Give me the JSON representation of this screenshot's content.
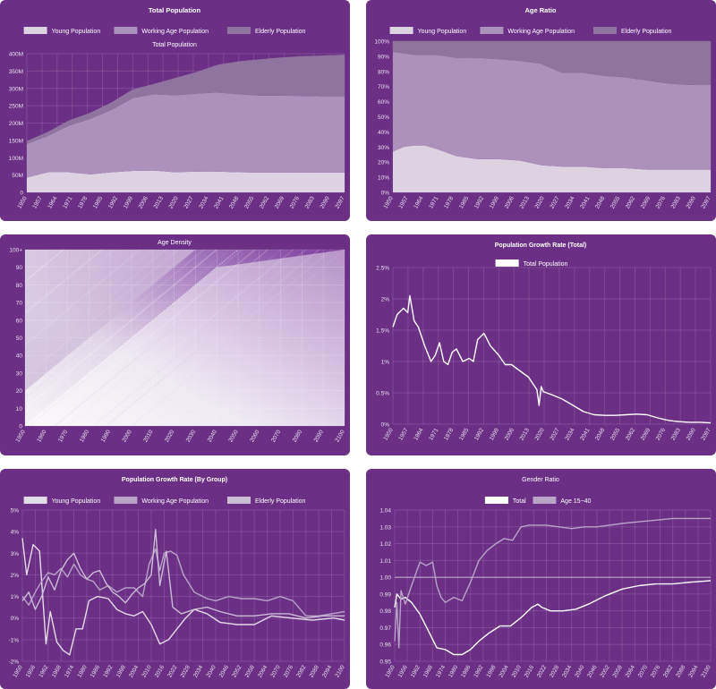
{
  "chart_data": [
    {
      "id": "total-population",
      "type": "area",
      "stacked": true,
      "title": "Total Population",
      "subtitle": "Total Population",
      "legend": [
        "Young Population",
        "Working Age Population",
        "Elderly Population"
      ],
      "x_ticks": [
        "1950",
        "1957",
        "1964",
        "1971",
        "1978",
        "1985",
        "1992",
        "1999",
        "2006",
        "2013",
        "2020",
        "2027",
        "2034",
        "2041",
        "2048",
        "2055",
        "2062",
        "2069",
        "2076",
        "2083",
        "2090",
        "2097"
      ],
      "y_ticks": [
        "0",
        "50M",
        "100M",
        "150M",
        "200M",
        "250M",
        "300M",
        "350M",
        "400M"
      ],
      "ylim": [
        0,
        400
      ],
      "x": [
        1950,
        1960,
        1970,
        1980,
        1990,
        2000,
        2010,
        2020,
        2030,
        2040,
        2050,
        2060,
        2070,
        2080,
        2090,
        2100
      ],
      "series": [
        {
          "name": "Young Population",
          "values": [
            43,
            58,
            58,
            52,
            58,
            62,
            63,
            58,
            60,
            60,
            58,
            57,
            57,
            57,
            57,
            57
          ],
          "color": "#dcd2e2"
        },
        {
          "name": "Working Age Population",
          "values": [
            97,
            105,
            135,
            160,
            180,
            210,
            220,
            222,
            225,
            228,
            225,
            222,
            222,
            221,
            220,
            220
          ],
          "color": "#ac91bd"
        },
        {
          "name": "Elderly Population",
          "values": [
            8,
            12,
            15,
            18,
            22,
            25,
            30,
            50,
            62,
            80,
            95,
            105,
            110,
            115,
            118,
            120
          ],
          "color": "#90739f"
        }
      ]
    },
    {
      "id": "age-ratio",
      "type": "area",
      "stacked": true,
      "title": "Age Ratio",
      "legend": [
        "Young Population",
        "Working Age Population",
        "Elderly Population"
      ],
      "x_ticks": [
        "1950",
        "1957",
        "1964",
        "1971",
        "1978",
        "1985",
        "1992",
        "1999",
        "2006",
        "2013",
        "2020",
        "2027",
        "2034",
        "2041",
        "2048",
        "2055",
        "2062",
        "2069",
        "2076",
        "2083",
        "2090",
        "2097"
      ],
      "y_ticks": [
        "0%",
        "10%",
        "20%",
        "30%",
        "40%",
        "50%",
        "60%",
        "70%",
        "80%",
        "90%",
        "100%"
      ],
      "ylim": [
        0,
        100
      ],
      "x": [
        1950,
        1955,
        1960,
        1965,
        1970,
        1980,
        1990,
        2000,
        2010,
        2020,
        2030,
        2040,
        2050,
        2060,
        2070,
        2080,
        2090,
        2100
      ],
      "series": [
        {
          "name": "Young Population",
          "values": [
            27,
            30,
            31,
            31,
            29,
            24,
            22,
            22,
            21,
            18,
            17,
            17,
            16,
            16,
            15,
            15,
            15,
            15
          ],
          "color": "#dcd2e2"
        },
        {
          "name": "Working Age Population",
          "values": [
            66,
            62,
            60,
            60,
            62,
            65,
            67,
            66,
            66,
            67,
            62,
            62,
            61,
            60,
            59,
            57,
            56,
            56
          ],
          "color": "#ac91bd"
        },
        {
          "name": "Elderly Population",
          "values": [
            7,
            8,
            9,
            9,
            9,
            11,
            11,
            12,
            13,
            15,
            21,
            21,
            23,
            24,
            26,
            28,
            29,
            29
          ],
          "color": "#90739f"
        }
      ]
    },
    {
      "id": "age-density",
      "type": "heatmap",
      "title": "Age Density",
      "x_ticks": [
        "1950",
        "1960",
        "1970",
        "1980",
        "1990",
        "2000",
        "2010",
        "2020",
        "2030",
        "2040",
        "2050",
        "2060",
        "2070",
        "2080",
        "2090",
        "2100"
      ],
      "y_ticks": [
        "0",
        "10",
        "20",
        "30",
        "40",
        "50",
        "60",
        "70",
        "80",
        "90",
        "100+"
      ],
      "xlim": [
        1950,
        2100
      ],
      "ylim": [
        0,
        100
      ]
    },
    {
      "id": "growth-total",
      "type": "line",
      "title": "Population Growth Rate (Total)",
      "legend": [
        "Total Population"
      ],
      "x_ticks": [
        "1950",
        "1957",
        "1964",
        "1971",
        "1978",
        "1985",
        "1992",
        "1999",
        "2006",
        "2013",
        "2020",
        "2027",
        "2034",
        "2041",
        "2048",
        "2055",
        "2062",
        "2069",
        "2076",
        "2083",
        "2090",
        "2097"
      ],
      "y_ticks": [
        "0%",
        "0.5%",
        "1%",
        "1.5%",
        "2%",
        "2.5%"
      ],
      "ylim": [
        0,
        2.5
      ],
      "x": [
        1950,
        1952,
        1955,
        1957,
        1958,
        1960,
        1962,
        1965,
        1968,
        1970,
        1972,
        1974,
        1976,
        1978,
        1980,
        1983,
        1986,
        1988,
        1990,
        1993,
        1996,
        2000,
        2003,
        2006,
        2010,
        2014,
        2016,
        2018,
        2019,
        2020,
        2021,
        2025,
        2030,
        2035,
        2040,
        2045,
        2050,
        2055,
        2060,
        2065,
        2070,
        2075,
        2080,
        2085,
        2090,
        2095,
        2100
      ],
      "series": [
        {
          "name": "Total Population",
          "values": [
            1.55,
            1.75,
            1.85,
            1.78,
            2.05,
            1.65,
            1.55,
            1.25,
            1.0,
            1.1,
            1.3,
            1.0,
            0.95,
            1.15,
            1.2,
            1.0,
            1.05,
            1.0,
            1.35,
            1.45,
            1.25,
            1.1,
            0.95,
            0.95,
            0.85,
            0.75,
            0.65,
            0.55,
            0.3,
            0.6,
            0.52,
            0.47,
            0.4,
            0.3,
            0.2,
            0.15,
            0.14,
            0.14,
            0.15,
            0.16,
            0.15,
            0.1,
            0.06,
            0.04,
            0.03,
            0.03,
            0.02
          ],
          "color": "#ffffff"
        }
      ]
    },
    {
      "id": "growth-by-group",
      "type": "line",
      "title": "Population Growth Rate (By Group)",
      "legend": [
        "Young Population",
        "Working Age Population",
        "Elderly Population"
      ],
      "x_ticks": [
        "1950",
        "1956",
        "1962",
        "1968",
        "1974",
        "1980",
        "1986",
        "1992",
        "1998",
        "2004",
        "2010",
        "2016",
        "2022",
        "2028",
        "2034",
        "2040",
        "2046",
        "2052",
        "2058",
        "2064",
        "2070",
        "2076",
        "2082",
        "2088",
        "2094",
        "2100"
      ],
      "y_ticks": [
        "-2%",
        "-1%",
        "0%",
        "1%",
        "2%",
        "3%",
        "4%",
        "5%"
      ],
      "ylim": [
        -2,
        5
      ],
      "series": [
        {
          "name": "Young Population",
          "color": "#e4dbe9",
          "x": [
            1950,
            1952,
            1955,
            1958,
            1961,
            1963,
            1966,
            1969,
            1972,
            1975,
            1978,
            1981,
            1985,
            1990,
            1994,
            1998,
            2002,
            2006,
            2010,
            2014,
            2018,
            2022,
            2026,
            2030,
            2036,
            2042,
            2050,
            2058,
            2066,
            2075,
            2085,
            2095,
            2100
          ],
          "values": [
            3.7,
            2.0,
            3.4,
            3.1,
            -1.2,
            0.3,
            -1.1,
            -1.5,
            -1.7,
            -0.5,
            -0.5,
            0.8,
            1.0,
            0.9,
            0.4,
            0.2,
            0.1,
            0.3,
            -0.3,
            -1.2,
            -1.0,
            -0.5,
            0.0,
            0.4,
            0.2,
            -0.2,
            -0.3,
            -0.3,
            0.1,
            0.0,
            -0.1,
            0.0,
            -0.1
          ]
        },
        {
          "name": "Working Age Population",
          "color": "#b9a3c8",
          "x": [
            1950,
            1953,
            1956,
            1959,
            1962,
            1965,
            1968,
            1971,
            1974,
            1977,
            1980,
            1983,
            1986,
            1990,
            1994,
            1998,
            2002,
            2006,
            2009,
            2012,
            2014,
            2016,
            2019,
            2022,
            2025,
            2030,
            2036,
            2040,
            2046,
            2052,
            2058,
            2064,
            2070,
            2076,
            2082,
            2088,
            2094,
            2100
          ],
          "values": [
            1.0,
            0.6,
            1.2,
            1.7,
            2.1,
            2.0,
            2.3,
            1.9,
            2.5,
            2.0,
            1.8,
            1.7,
            1.3,
            1.5,
            1.2,
            1.4,
            1.4,
            1.0,
            2.5,
            3.2,
            2.2,
            3.0,
            3.1,
            2.9,
            2.0,
            1.2,
            0.9,
            0.8,
            1.0,
            0.9,
            0.9,
            0.8,
            1.0,
            0.8,
            0.1,
            0.1,
            0.2,
            0.3
          ]
        },
        {
          "name": "Elderly Population",
          "color": "#ccbcd6",
          "x": [
            1950,
            1953,
            1956,
            1959,
            1962,
            1965,
            1968,
            1971,
            1974,
            1977,
            1980,
            1983,
            1986,
            1989,
            1992,
            1995,
            1998,
            2001,
            2004,
            2007,
            2010,
            2012,
            2014,
            2017,
            2020,
            2024,
            2030,
            2036,
            2042,
            2050,
            2058,
            2066,
            2074,
            2082,
            2090,
            2100
          ],
          "values": [
            0.8,
            1.2,
            0.4,
            1.0,
            1.9,
            1.3,
            2.2,
            2.7,
            3.0,
            2.3,
            1.8,
            2.1,
            2.2,
            1.6,
            1.2,
            1.0,
            0.7,
            1.1,
            1.4,
            1.6,
            2.0,
            4.1,
            1.5,
            3.1,
            0.5,
            0.2,
            0.4,
            0.5,
            0.3,
            0.1,
            0.1,
            0.2,
            0.2,
            0.0,
            0.1,
            0.1
          ]
        }
      ]
    },
    {
      "id": "gender-ratio",
      "type": "line",
      "title": "Gender Ratio",
      "legend": [
        "Total",
        "Age 15~40"
      ],
      "x_ticks": [
        "1950",
        "1956",
        "1962",
        "1968",
        "1974",
        "1980",
        "1986",
        "1992",
        "1998",
        "2004",
        "2010",
        "2016",
        "2022",
        "2028",
        "2034",
        "2040",
        "2046",
        "2052",
        "2058",
        "2064",
        "2070",
        "2076",
        "2082",
        "2088",
        "2094",
        "2100"
      ],
      "y_ticks": [
        "0.95",
        "0.96",
        "0.97",
        "0.98",
        "0.99",
        "1.00",
        "1.01",
        "1.02",
        "1.03",
        "1.04"
      ],
      "ylim": [
        0.95,
        1.04
      ],
      "reference_line": 1.0,
      "series": [
        {
          "name": "Total",
          "color": "#ffffff",
          "x": [
            1950,
            1951,
            1953,
            1955,
            1958,
            1962,
            1966,
            1970,
            1974,
            1978,
            1982,
            1986,
            1990,
            1995,
            2000,
            2005,
            2010,
            2015,
            2018,
            2020,
            2024,
            2030,
            2036,
            2042,
            2050,
            2058,
            2066,
            2074,
            2082,
            2090,
            2100
          ],
          "values": [
            0.982,
            0.99,
            0.987,
            0.988,
            0.985,
            0.978,
            0.968,
            0.958,
            0.957,
            0.954,
            0.954,
            0.957,
            0.962,
            0.967,
            0.971,
            0.971,
            0.976,
            0.982,
            0.984,
            0.982,
            0.98,
            0.98,
            0.981,
            0.984,
            0.989,
            0.993,
            0.995,
            0.996,
            0.996,
            0.997,
            0.998
          ]
        },
        {
          "name": "Age 15~40",
          "color": "#b9a3c8",
          "x": [
            1950,
            1951,
            1952,
            1953,
            1955,
            1958,
            1962,
            1965,
            1968,
            1970,
            1972,
            1974,
            1978,
            1982,
            1986,
            1990,
            1994,
            1998,
            2002,
            2006,
            2010,
            2014,
            2018,
            2022,
            2028,
            2034,
            2040,
            2046,
            2052,
            2058,
            2066,
            2074,
            2082,
            2090,
            2100
          ],
          "values": [
            0.962,
            0.985,
            0.958,
            0.992,
            0.984,
            0.995,
            1.009,
            1.007,
            1.009,
            0.995,
            0.988,
            0.985,
            0.988,
            0.986,
            0.997,
            1.01,
            1.016,
            1.02,
            1.023,
            1.022,
            1.03,
            1.031,
            1.031,
            1.031,
            1.03,
            1.029,
            1.03,
            1.03,
            1.031,
            1.032,
            1.033,
            1.034,
            1.035,
            1.035,
            1.035
          ]
        }
      ]
    }
  ]
}
